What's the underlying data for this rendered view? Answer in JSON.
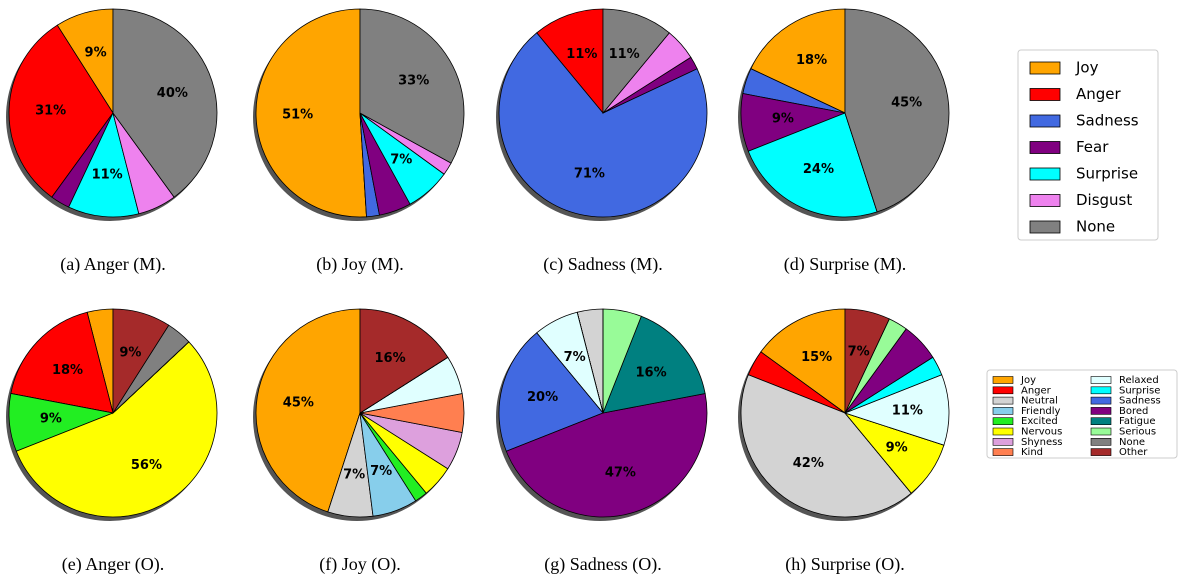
{
  "chart_data": [
    {
      "type": "pie",
      "caption": "(a) Anger (M).",
      "categories": [
        "Joy",
        "Anger",
        "Sadness",
        "Fear",
        "Surprise",
        "Disgust",
        "None"
      ],
      "colors": [
        "#ffa500",
        "#ff0000",
        "#4169e1",
        "#800080",
        "#00ffff",
        "#ee82ee",
        "#808080"
      ],
      "values": [
        9,
        31,
        0,
        3,
        11,
        6,
        40
      ],
      "value_labels": [
        "9%",
        "31%",
        null,
        null,
        "11%",
        null,
        "40%"
      ]
    },
    {
      "type": "pie",
      "caption": "(b) Joy (M).",
      "categories": [
        "Joy",
        "Anger",
        "Sadness",
        "Fear",
        "Surprise",
        "Disgust",
        "None"
      ],
      "colors": [
        "#ffa500",
        "#ff0000",
        "#4169e1",
        "#800080",
        "#00ffff",
        "#ee82ee",
        "#808080"
      ],
      "values": [
        51,
        0,
        2,
        5,
        7,
        2,
        33
      ],
      "value_labels": [
        "51%",
        null,
        null,
        null,
        "7%",
        null,
        "33%"
      ]
    },
    {
      "type": "pie",
      "caption": "(c) Sadness (M).",
      "categories": [
        "Joy",
        "Anger",
        "Sadness",
        "Fear",
        "Surprise",
        "Disgust",
        "None"
      ],
      "colors": [
        "#ffa500",
        "#ff0000",
        "#4169e1",
        "#800080",
        "#00ffff",
        "#ee82ee",
        "#808080"
      ],
      "values": [
        0,
        11,
        71,
        2,
        0,
        5,
        11
      ],
      "value_labels": [
        null,
        "11%",
        "71%",
        null,
        null,
        null,
        "11%"
      ]
    },
    {
      "type": "pie",
      "caption": "(d) Surprise (M).",
      "categories": [
        "Joy",
        "Anger",
        "Sadness",
        "Fear",
        "Surprise",
        "Disgust",
        "None"
      ],
      "colors": [
        "#ffa500",
        "#ff0000",
        "#4169e1",
        "#800080",
        "#00ffff",
        "#ee82ee",
        "#808080"
      ],
      "values": [
        18,
        0,
        4,
        9,
        24,
        0,
        45
      ],
      "value_labels": [
        "18%",
        null,
        null,
        "9%",
        "24%",
        null,
        "45%"
      ]
    },
    {
      "type": "pie",
      "caption": "(e) Anger (O).",
      "categories": [
        "Joy",
        "Anger",
        "Neutral",
        "Friendly",
        "Excited",
        "Nervous",
        "Shyness",
        "Kind",
        "Relaxed",
        "Surprise",
        "Sadness",
        "Bored",
        "Fatigue",
        "Serious",
        "None",
        "Other"
      ],
      "colors": [
        "#ffa500",
        "#ff0000",
        "#d3d3d3",
        "#87ceeb",
        "#22ee22",
        "#ffff00",
        "#dda0dd",
        "#ff7f50",
        "#e0ffff",
        "#00ffff",
        "#4169e1",
        "#800080",
        "#008080",
        "#98fb98",
        "#808080",
        "#a52a2a"
      ],
      "values": [
        4,
        18,
        0,
        0,
        9,
        56,
        0,
        0,
        0,
        0,
        0,
        0,
        0,
        0,
        4,
        9
      ],
      "value_labels": [
        null,
        "18%",
        null,
        null,
        "9%",
        "56%",
        null,
        null,
        null,
        null,
        null,
        null,
        null,
        null,
        null,
        "9%"
      ]
    },
    {
      "type": "pie",
      "caption": "(f) Joy (O).",
      "categories": [
        "Joy",
        "Anger",
        "Neutral",
        "Friendly",
        "Excited",
        "Nervous",
        "Shyness",
        "Kind",
        "Relaxed",
        "Surprise",
        "Sadness",
        "Bored",
        "Fatigue",
        "Serious",
        "None",
        "Other"
      ],
      "colors": [
        "#ffa500",
        "#ff0000",
        "#d3d3d3",
        "#87ceeb",
        "#22ee22",
        "#ffff00",
        "#dda0dd",
        "#ff7f50",
        "#e0ffff",
        "#00ffff",
        "#4169e1",
        "#800080",
        "#008080",
        "#98fb98",
        "#808080",
        "#a52a2a"
      ],
      "values": [
        45,
        0,
        7,
        7,
        2,
        5,
        6,
        6,
        6,
        0,
        0,
        0,
        0,
        0,
        0,
        16
      ],
      "value_labels": [
        "45%",
        null,
        "7%",
        "7%",
        null,
        null,
        null,
        null,
        null,
        null,
        null,
        null,
        null,
        null,
        null,
        "16%"
      ]
    },
    {
      "type": "pie",
      "caption": "(g) Sadness (O).",
      "categories": [
        "Joy",
        "Anger",
        "Neutral",
        "Friendly",
        "Excited",
        "Nervous",
        "Shyness",
        "Kind",
        "Relaxed",
        "Surprise",
        "Sadness",
        "Bored",
        "Fatigue",
        "Serious",
        "None",
        "Other"
      ],
      "colors": [
        "#ffa500",
        "#ff0000",
        "#d3d3d3",
        "#87ceeb",
        "#22ee22",
        "#ffff00",
        "#dda0dd",
        "#ff7f50",
        "#e0ffff",
        "#00ffff",
        "#4169e1",
        "#800080",
        "#008080",
        "#98fb98",
        "#808080",
        "#a52a2a"
      ],
      "values": [
        0,
        0,
        4,
        0,
        0,
        0,
        0,
        0,
        7,
        0,
        20,
        47,
        16,
        6,
        0,
        0
      ],
      "value_labels": [
        null,
        null,
        null,
        null,
        null,
        null,
        null,
        null,
        "7%",
        null,
        "20%",
        "47%",
        "16%",
        null,
        null,
        null
      ]
    },
    {
      "type": "pie",
      "caption": "(h) Surprise (O).",
      "categories": [
        "Joy",
        "Anger",
        "Neutral",
        "Friendly",
        "Excited",
        "Nervous",
        "Shyness",
        "Kind",
        "Relaxed",
        "Surprise",
        "Sadness",
        "Bored",
        "Fatigue",
        "Serious",
        "None",
        "Other"
      ],
      "colors": [
        "#ffa500",
        "#ff0000",
        "#d3d3d3",
        "#87ceeb",
        "#22ee22",
        "#ffff00",
        "#dda0dd",
        "#ff7f50",
        "#e0ffff",
        "#00ffff",
        "#4169e1",
        "#800080",
        "#008080",
        "#98fb98",
        "#808080",
        "#a52a2a"
      ],
      "values": [
        15,
        4,
        42,
        0,
        0,
        9,
        0,
        0,
        11,
        3,
        0,
        6,
        0,
        3,
        0,
        7
      ],
      "value_labels": [
        "15%",
        null,
        "42%",
        null,
        null,
        "9%",
        null,
        null,
        "11%",
        null,
        null,
        null,
        null,
        null,
        null,
        "7%"
      ]
    }
  ]
}
